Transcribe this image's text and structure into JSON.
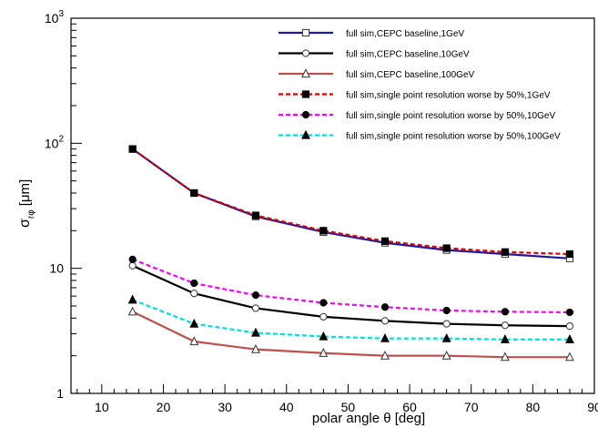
{
  "chart_data": {
    "type": "line",
    "xlabel": "polar angle θ [deg]",
    "ylabel_main": "σ",
    "ylabel_sub": "rφ",
    "ylabel_unit": "[μm]",
    "xlim": [
      5,
      90
    ],
    "ylim": [
      1,
      1000
    ],
    "yscale": "log",
    "grid": false,
    "legend_position": "top-right",
    "x_ticks": [
      10,
      20,
      30,
      40,
      50,
      60,
      70,
      80,
      90
    ],
    "x_tick_labels": [
      "10",
      "20",
      "30",
      "40",
      "50",
      "60",
      "70",
      "80",
      "90"
    ],
    "y_ticks": [
      {
        "value": 1,
        "base": "1",
        "exp": ""
      },
      {
        "value": 10,
        "base": "10",
        "exp": ""
      },
      {
        "value": 100,
        "base": "10",
        "exp": "2"
      },
      {
        "value": 1000,
        "base": "10",
        "exp": "3"
      }
    ],
    "x": [
      15,
      25,
      35,
      46,
      56,
      66,
      75.5,
      86
    ],
    "series": [
      {
        "name": "full sim,CEPC baseline,1GeV",
        "color": "#1a1aaa",
        "dash": "solid",
        "marker": "open-square",
        "values": [
          90,
          40,
          26,
          19.5,
          16,
          14,
          13,
          12
        ]
      },
      {
        "name": "full sim,CEPC baseline,10GeV",
        "color": "#000000",
        "dash": "solid",
        "marker": "open-circle",
        "values": [
          10.5,
          6.3,
          4.8,
          4.1,
          3.8,
          3.6,
          3.5,
          3.45
        ]
      },
      {
        "name": "full sim,CEPC baseline,100GeV",
        "color": "#c0504d",
        "dash": "solid",
        "marker": "open-triangle",
        "values": [
          4.5,
          2.6,
          2.25,
          2.1,
          2.0,
          2.0,
          1.95,
          1.95
        ]
      },
      {
        "name": "full sim,single point resolution worse by 50%,1GeV",
        "color": "#e00000",
        "dash": "dashed",
        "marker": "filled-square",
        "values": [
          90,
          40,
          26.5,
          20,
          16.5,
          14.5,
          13.5,
          13
        ]
      },
      {
        "name": "full sim,single point resolution worse by 50%,10GeV",
        "color": "#ff00ff",
        "dash": "dashed",
        "marker": "filled-circle",
        "values": [
          11.8,
          7.6,
          6.1,
          5.3,
          4.9,
          4.6,
          4.5,
          4.45
        ]
      },
      {
        "name": "full sim,single point resolution worse by 50%,100GeV",
        "color": "#00e0e0",
        "dash": "dashed",
        "marker": "filled-triangle",
        "values": [
          5.6,
          3.6,
          3.05,
          2.85,
          2.75,
          2.75,
          2.7,
          2.7
        ]
      }
    ]
  }
}
